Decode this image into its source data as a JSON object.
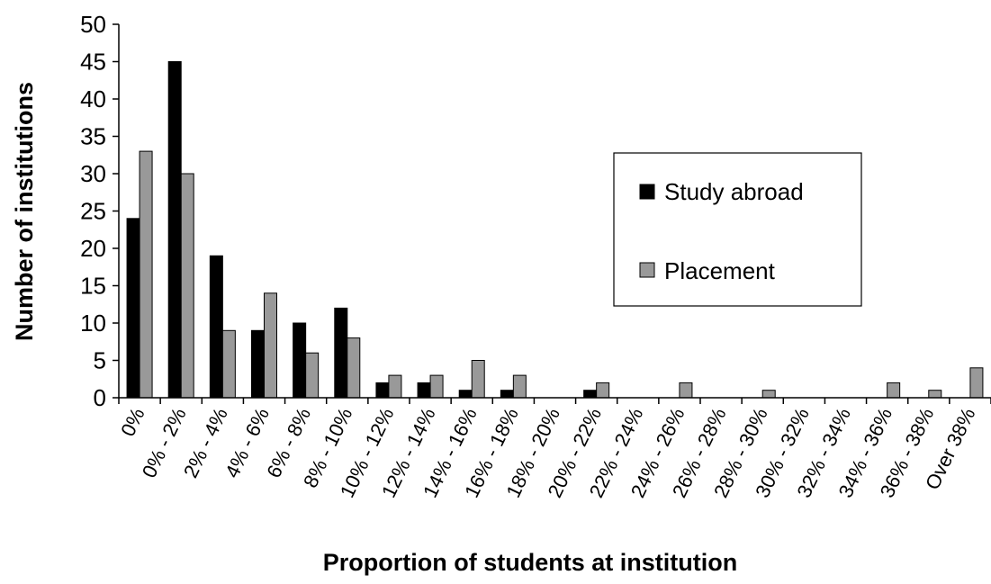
{
  "chart_data": {
    "type": "bar",
    "title": "",
    "xlabel": "Proportion of students at institution",
    "ylabel": "Number of institutions",
    "ylim": [
      0,
      50
    ],
    "yticks": [
      0,
      5,
      10,
      15,
      20,
      25,
      30,
      35,
      40,
      45,
      50
    ],
    "grid": false,
    "legend_position": "right",
    "categories": [
      "0%",
      "0% - 2%",
      "2% - 4%",
      "4% - 6%",
      "6% - 8%",
      "8% - 10%",
      "10% - 12%",
      "12% - 14%",
      "14% - 16%",
      "16% - 18%",
      "18% - 20%",
      "20% - 22%",
      "22% - 24%",
      "24% - 26%",
      "26% - 28%",
      "28% - 30%",
      "30% - 32%",
      "32% - 34%",
      "34% - 36%",
      "36% - 38%",
      "Over 38%"
    ],
    "series": [
      {
        "name": "Study abroad",
        "color": "#000000",
        "values": [
          24,
          45,
          19,
          9,
          10,
          12,
          2,
          2,
          1,
          1,
          0,
          1,
          0,
          0,
          0,
          0,
          0,
          0,
          0,
          0,
          0
        ]
      },
      {
        "name": "Placement",
        "color": "#999999",
        "values": [
          33,
          30,
          9,
          14,
          6,
          8,
          3,
          3,
          5,
          3,
          0,
          2,
          0,
          2,
          0,
          1,
          0,
          0,
          2,
          1,
          4
        ]
      }
    ]
  }
}
